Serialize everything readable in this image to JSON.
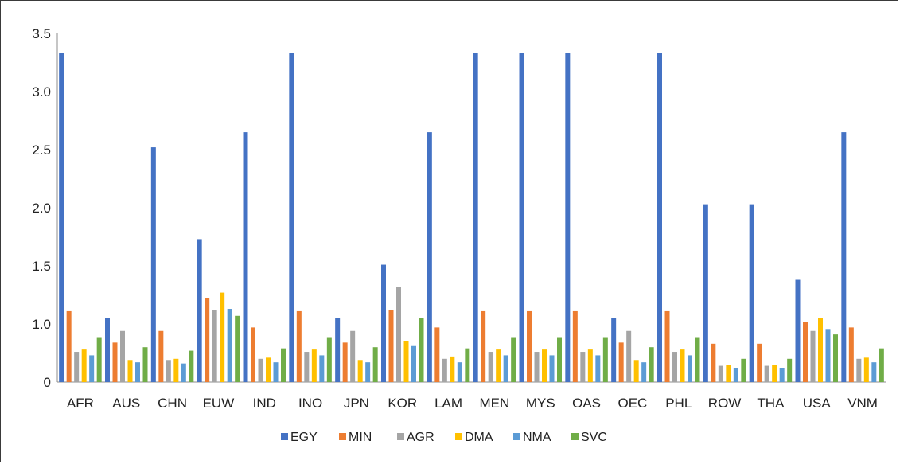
{
  "chart_data": {
    "type": "bar",
    "categories": [
      "AFR",
      "AUS",
      "CHN",
      "EUW",
      "IND",
      "INO",
      "JPN",
      "KOR",
      "LAM",
      "MEN",
      "MYS",
      "OAS",
      "OEC",
      "PHL",
      "ROW",
      "THA",
      "USA",
      "VNM"
    ],
    "series": [
      {
        "name": "EGY",
        "color": "#4472C4",
        "values": [
          3.33,
          1.05,
          2.52,
          1.73,
          2.65,
          3.33,
          1.05,
          1.51,
          2.65,
          3.33,
          3.33,
          3.33,
          1.05,
          3.33,
          2.03,
          2.03,
          1.38,
          2.65
        ]
      },
      {
        "name": "MIN",
        "color": "#ED7D31",
        "values": [
          1.11,
          0.84,
          0.94,
          1.22,
          0.97,
          1.11,
          0.84,
          1.12,
          0.97,
          1.11,
          1.11,
          1.11,
          0.84,
          1.11,
          0.83,
          0.83,
          1.02,
          0.97
        ]
      },
      {
        "name": "AGR",
        "color": "#A5A5A5",
        "values": [
          0.76,
          0.94,
          0.69,
          1.12,
          0.7,
          0.76,
          0.94,
          1.32,
          0.7,
          0.76,
          0.76,
          0.76,
          0.94,
          0.76,
          0.64,
          0.64,
          0.94,
          0.7
        ]
      },
      {
        "name": "DMA",
        "color": "#FFC000",
        "values": [
          0.78,
          0.69,
          0.7,
          1.27,
          0.71,
          0.78,
          0.69,
          0.85,
          0.72,
          0.78,
          0.78,
          0.78,
          0.69,
          0.78,
          0.65,
          0.65,
          1.05,
          0.71
        ]
      },
      {
        "name": "NMA",
        "color": "#5B9BD5",
        "values": [
          0.73,
          0.67,
          0.66,
          1.13,
          0.67,
          0.73,
          0.67,
          0.81,
          0.67,
          0.73,
          0.73,
          0.73,
          0.67,
          0.73,
          0.62,
          0.62,
          0.95,
          0.67
        ]
      },
      {
        "name": "SVC",
        "color": "#70AD47",
        "values": [
          0.88,
          0.8,
          0.77,
          1.07,
          0.79,
          0.88,
          0.8,
          1.05,
          0.79,
          0.88,
          0.88,
          0.88,
          0.8,
          0.88,
          0.7,
          0.7,
          0.91,
          0.79
        ]
      }
    ],
    "y_ticks": [
      "0",
      "1.0",
      "1.5",
      "2.0",
      "2.5",
      "3.0",
      "3.5"
    ],
    "ylim": [
      0.5,
      3.5
    ],
    "grid": false,
    "legend_position": "bottom"
  }
}
